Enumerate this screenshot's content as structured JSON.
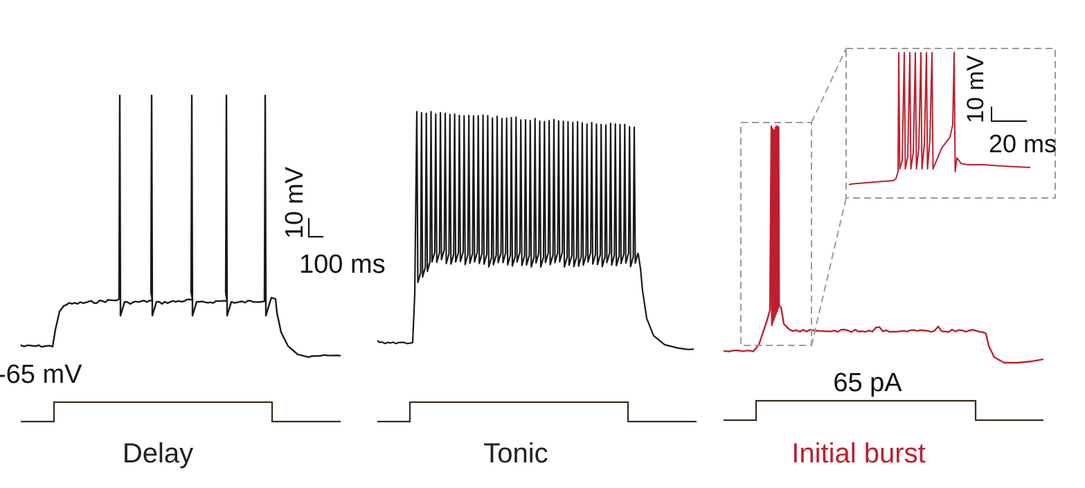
{
  "colors": {
    "black_trace": "#1a1a1a",
    "red_trace": "#be1e2d",
    "step_line": "#3a2a1a",
    "inset_box": "#9a9a9a",
    "label_text": "#222222"
  },
  "panels": [
    {
      "label": "Delay",
      "label_color": "#222222",
      "resting_potential_label": "-65 mV",
      "scale_bar": {
        "vertical_label": "10 mV",
        "horizontal_label": "100 ms"
      }
    },
    {
      "label": "Tonic",
      "label_color": "#222222"
    },
    {
      "label": "Initial burst",
      "label_color": "#be1e2d",
      "stimulus_label": "65 pA",
      "inset_scale_bar": {
        "vertical_label": "10 mV",
        "horizontal_label": "20 ms"
      }
    }
  ],
  "chart_data": {
    "type": "line",
    "title": "",
    "xlabel": "",
    "ylabel": "",
    "series": [
      {
        "name": "Delay",
        "resting_potential_mV": -65,
        "spike_count": 5,
        "spike_onset_relative": [
          0.3,
          0.41,
          0.54,
          0.65,
          0.77
        ]
      },
      {
        "name": "Tonic",
        "spike_count": 47,
        "spike_window_relative": [
          0.0,
          1.0
        ]
      },
      {
        "name": "Initial burst",
        "stimulus_pA": 65,
        "burst_spike_count": 8,
        "burst_position": "stimulus onset"
      }
    ],
    "stimulus": {
      "amplitude_pA": 65,
      "shape": "step"
    },
    "scale_bars": {
      "main": {
        "voltage_mV": 10,
        "time_ms": 100
      },
      "inset": {
        "voltage_mV": 10,
        "time_ms": 20
      }
    }
  }
}
